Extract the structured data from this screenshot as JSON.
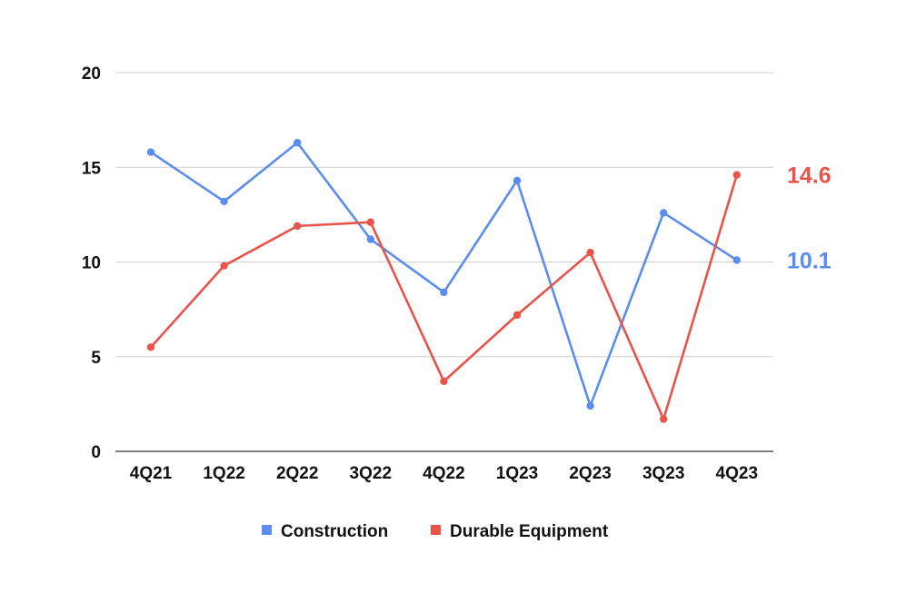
{
  "chart_data": {
    "type": "line",
    "title": "",
    "xlabel": "",
    "ylabel": "",
    "categories": [
      "4Q21",
      "1Q22",
      "2Q22",
      "3Q22",
      "4Q22",
      "1Q23",
      "2Q23",
      "3Q23",
      "4Q23"
    ],
    "ylim": [
      0,
      20
    ],
    "yticks": [
      "0",
      "5",
      "10",
      "15",
      "20"
    ],
    "grid": true,
    "legend_position": "bottom",
    "series": [
      {
        "name": "Construction",
        "color": "#5b8def",
        "values": [
          15.8,
          13.2,
          16.3,
          11.2,
          8.4,
          14.3,
          2.4,
          12.6,
          10.1
        ],
        "end_label": "10.1"
      },
      {
        "name": "Durable Equipment",
        "color": "#e8544a",
        "values": [
          5.5,
          9.8,
          11.9,
          12.1,
          3.7,
          7.2,
          10.5,
          1.7,
          14.6
        ],
        "end_label": "14.6"
      }
    ]
  }
}
